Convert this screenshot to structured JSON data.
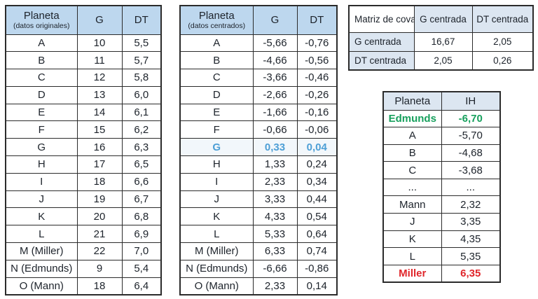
{
  "colors": {
    "header_blue": "#BDD7EE",
    "light_blue": "#DCE6F1",
    "accent_blue": "#4D9FD6",
    "green": "#17A05D",
    "red": "#E0262B",
    "border": "#2b2b2b"
  },
  "table_originales": {
    "header": {
      "title": "Planeta",
      "subtitle": "(datos originales)",
      "col_g": "G",
      "col_dt": "DT"
    },
    "rows": [
      {
        "cells": [
          "A",
          "10",
          "5,5"
        ]
      },
      {
        "cells": [
          "B",
          "11",
          "5,7"
        ]
      },
      {
        "cells": [
          "C",
          "12",
          "5,8"
        ]
      },
      {
        "cells": [
          "D",
          "13",
          "6,0"
        ]
      },
      {
        "cells": [
          "E",
          "14",
          "6,1"
        ]
      },
      {
        "cells": [
          "F",
          "15",
          "6,2"
        ]
      },
      {
        "cells": [
          "G",
          "16",
          "6,3"
        ]
      },
      {
        "cells": [
          "H",
          "17",
          "6,5"
        ]
      },
      {
        "cells": [
          "I",
          "18",
          "6,6"
        ]
      },
      {
        "cells": [
          "J",
          "19",
          "6,7"
        ]
      },
      {
        "cells": [
          "K",
          "20",
          "6,8"
        ]
      },
      {
        "cells": [
          "L",
          "21",
          "6,9"
        ]
      },
      {
        "cells": [
          "M (Miller)",
          "22",
          "7,0"
        ]
      },
      {
        "cells": [
          "N (Edmunds)",
          "9",
          "5,4"
        ]
      },
      {
        "cells": [
          "O (Mann)",
          "18",
          "6,4"
        ]
      }
    ]
  },
  "table_centrados": {
    "header": {
      "title": "Planeta",
      "subtitle": "(datos centrados)",
      "col_g": "G",
      "col_dt": "DT"
    },
    "rows": [
      {
        "cells": [
          "A",
          "-5,66",
          "-0,76"
        ]
      },
      {
        "cells": [
          "B",
          "-4,66",
          "-0,56"
        ]
      },
      {
        "cells": [
          "C",
          "-3,66",
          "-0,46"
        ]
      },
      {
        "cells": [
          "D",
          "-2,66",
          "-0,26"
        ]
      },
      {
        "cells": [
          "E",
          "-1,66",
          "-0,16"
        ]
      },
      {
        "cells": [
          "F",
          "-0,66",
          "-0,06"
        ]
      },
      {
        "cells": [
          "G",
          "0,33",
          "0,04"
        ],
        "style": "hl-blue"
      },
      {
        "cells": [
          "H",
          "1,33",
          "0,24"
        ]
      },
      {
        "cells": [
          "I",
          "2,33",
          "0,34"
        ]
      },
      {
        "cells": [
          "J",
          "3,33",
          "0,44"
        ]
      },
      {
        "cells": [
          "K",
          "4,33",
          "0,54"
        ]
      },
      {
        "cells": [
          "L",
          "5,33",
          "0,64"
        ]
      },
      {
        "cells": [
          "M (Miller)",
          "6,33",
          "0,74"
        ]
      },
      {
        "cells": [
          "N (Edmunds)",
          "-6,66",
          "-0,86"
        ]
      },
      {
        "cells": [
          "O (Mann)",
          "2,33",
          "0,14"
        ]
      }
    ]
  },
  "covariance": {
    "corner_title": "Matriz de covarianza",
    "col_header_g": "G centrada",
    "col_header_dt": "DT centrada",
    "rows": [
      {
        "cells": [
          "G centrada",
          "16,67",
          "2,05"
        ]
      },
      {
        "cells": [
          "DT centrada",
          "2,05",
          "0,26"
        ]
      }
    ]
  },
  "table_ih": {
    "header": {
      "col_planeta": "Planeta",
      "col_ih": "IH"
    },
    "rows": [
      {
        "cells": [
          "Edmunds",
          "-6,70"
        ],
        "style": "hl-green"
      },
      {
        "cells": [
          "A",
          "-5,70"
        ]
      },
      {
        "cells": [
          "B",
          "-4,68"
        ]
      },
      {
        "cells": [
          "C",
          "-3,68"
        ]
      },
      {
        "cells": [
          "...",
          "..."
        ]
      },
      {
        "cells": [
          "Mann",
          "2,32"
        ]
      },
      {
        "cells": [
          "J",
          "3,35"
        ]
      },
      {
        "cells": [
          "K",
          "4,35"
        ]
      },
      {
        "cells": [
          "L",
          "5,35"
        ]
      },
      {
        "cells": [
          "Miller",
          "6,35"
        ],
        "style": "hl-red"
      }
    ]
  }
}
